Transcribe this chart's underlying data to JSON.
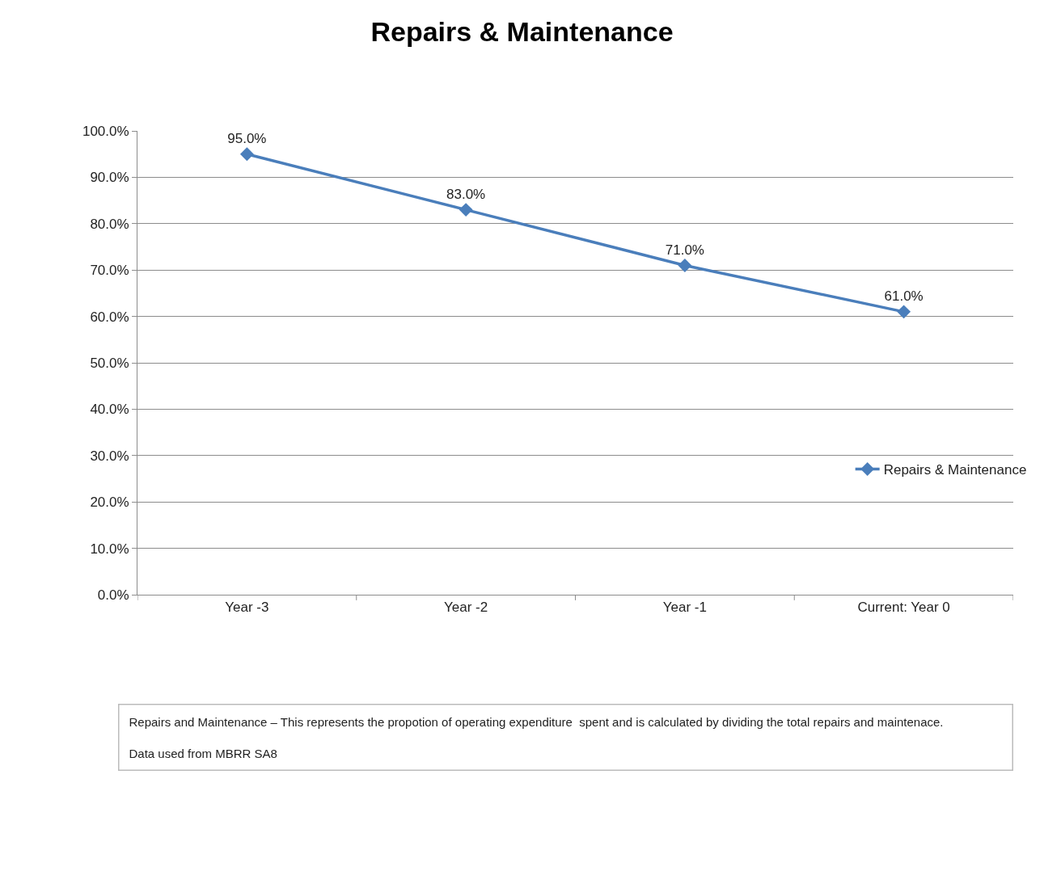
{
  "chart_data": {
    "type": "line",
    "title": "Repairs & Maintenance",
    "categories": [
      "Year -3",
      "Year -2",
      "Year -1",
      "Current: Year 0"
    ],
    "series": [
      {
        "name": "Repairs & Maintenance",
        "color": "#4a7ebb",
        "values": [
          95,
          83,
          71,
          61
        ],
        "value_labels": [
          "95.0%",
          "83.0%",
          "71.0%",
          "61.0%"
        ]
      }
    ],
    "ylim": [
      0,
      100
    ],
    "yticks": [
      {
        "value": 0,
        "label": "0.0%"
      },
      {
        "value": 10,
        "label": "10.0%"
      },
      {
        "value": 20,
        "label": "20.0%"
      },
      {
        "value": 30,
        "label": "30.0%"
      },
      {
        "value": 40,
        "label": "40.0%"
      },
      {
        "value": 50,
        "label": "50.0%"
      },
      {
        "value": 60,
        "label": "60.0%"
      },
      {
        "value": 70,
        "label": "70.0%"
      },
      {
        "value": 80,
        "label": "80.0%"
      },
      {
        "value": 90,
        "label": "90.0%"
      },
      {
        "value": 100,
        "label": "100.0%"
      }
    ],
    "grid": "y",
    "legend": "right",
    "marker": "diamond",
    "line_style": "solid",
    "annotations": [
      "Repairs and Maintenance – This represents the propotion of operating expenditure  spent and is calculated by dividing the total repairs and maintenace.",
      "Data used from MBRR SA8"
    ]
  }
}
